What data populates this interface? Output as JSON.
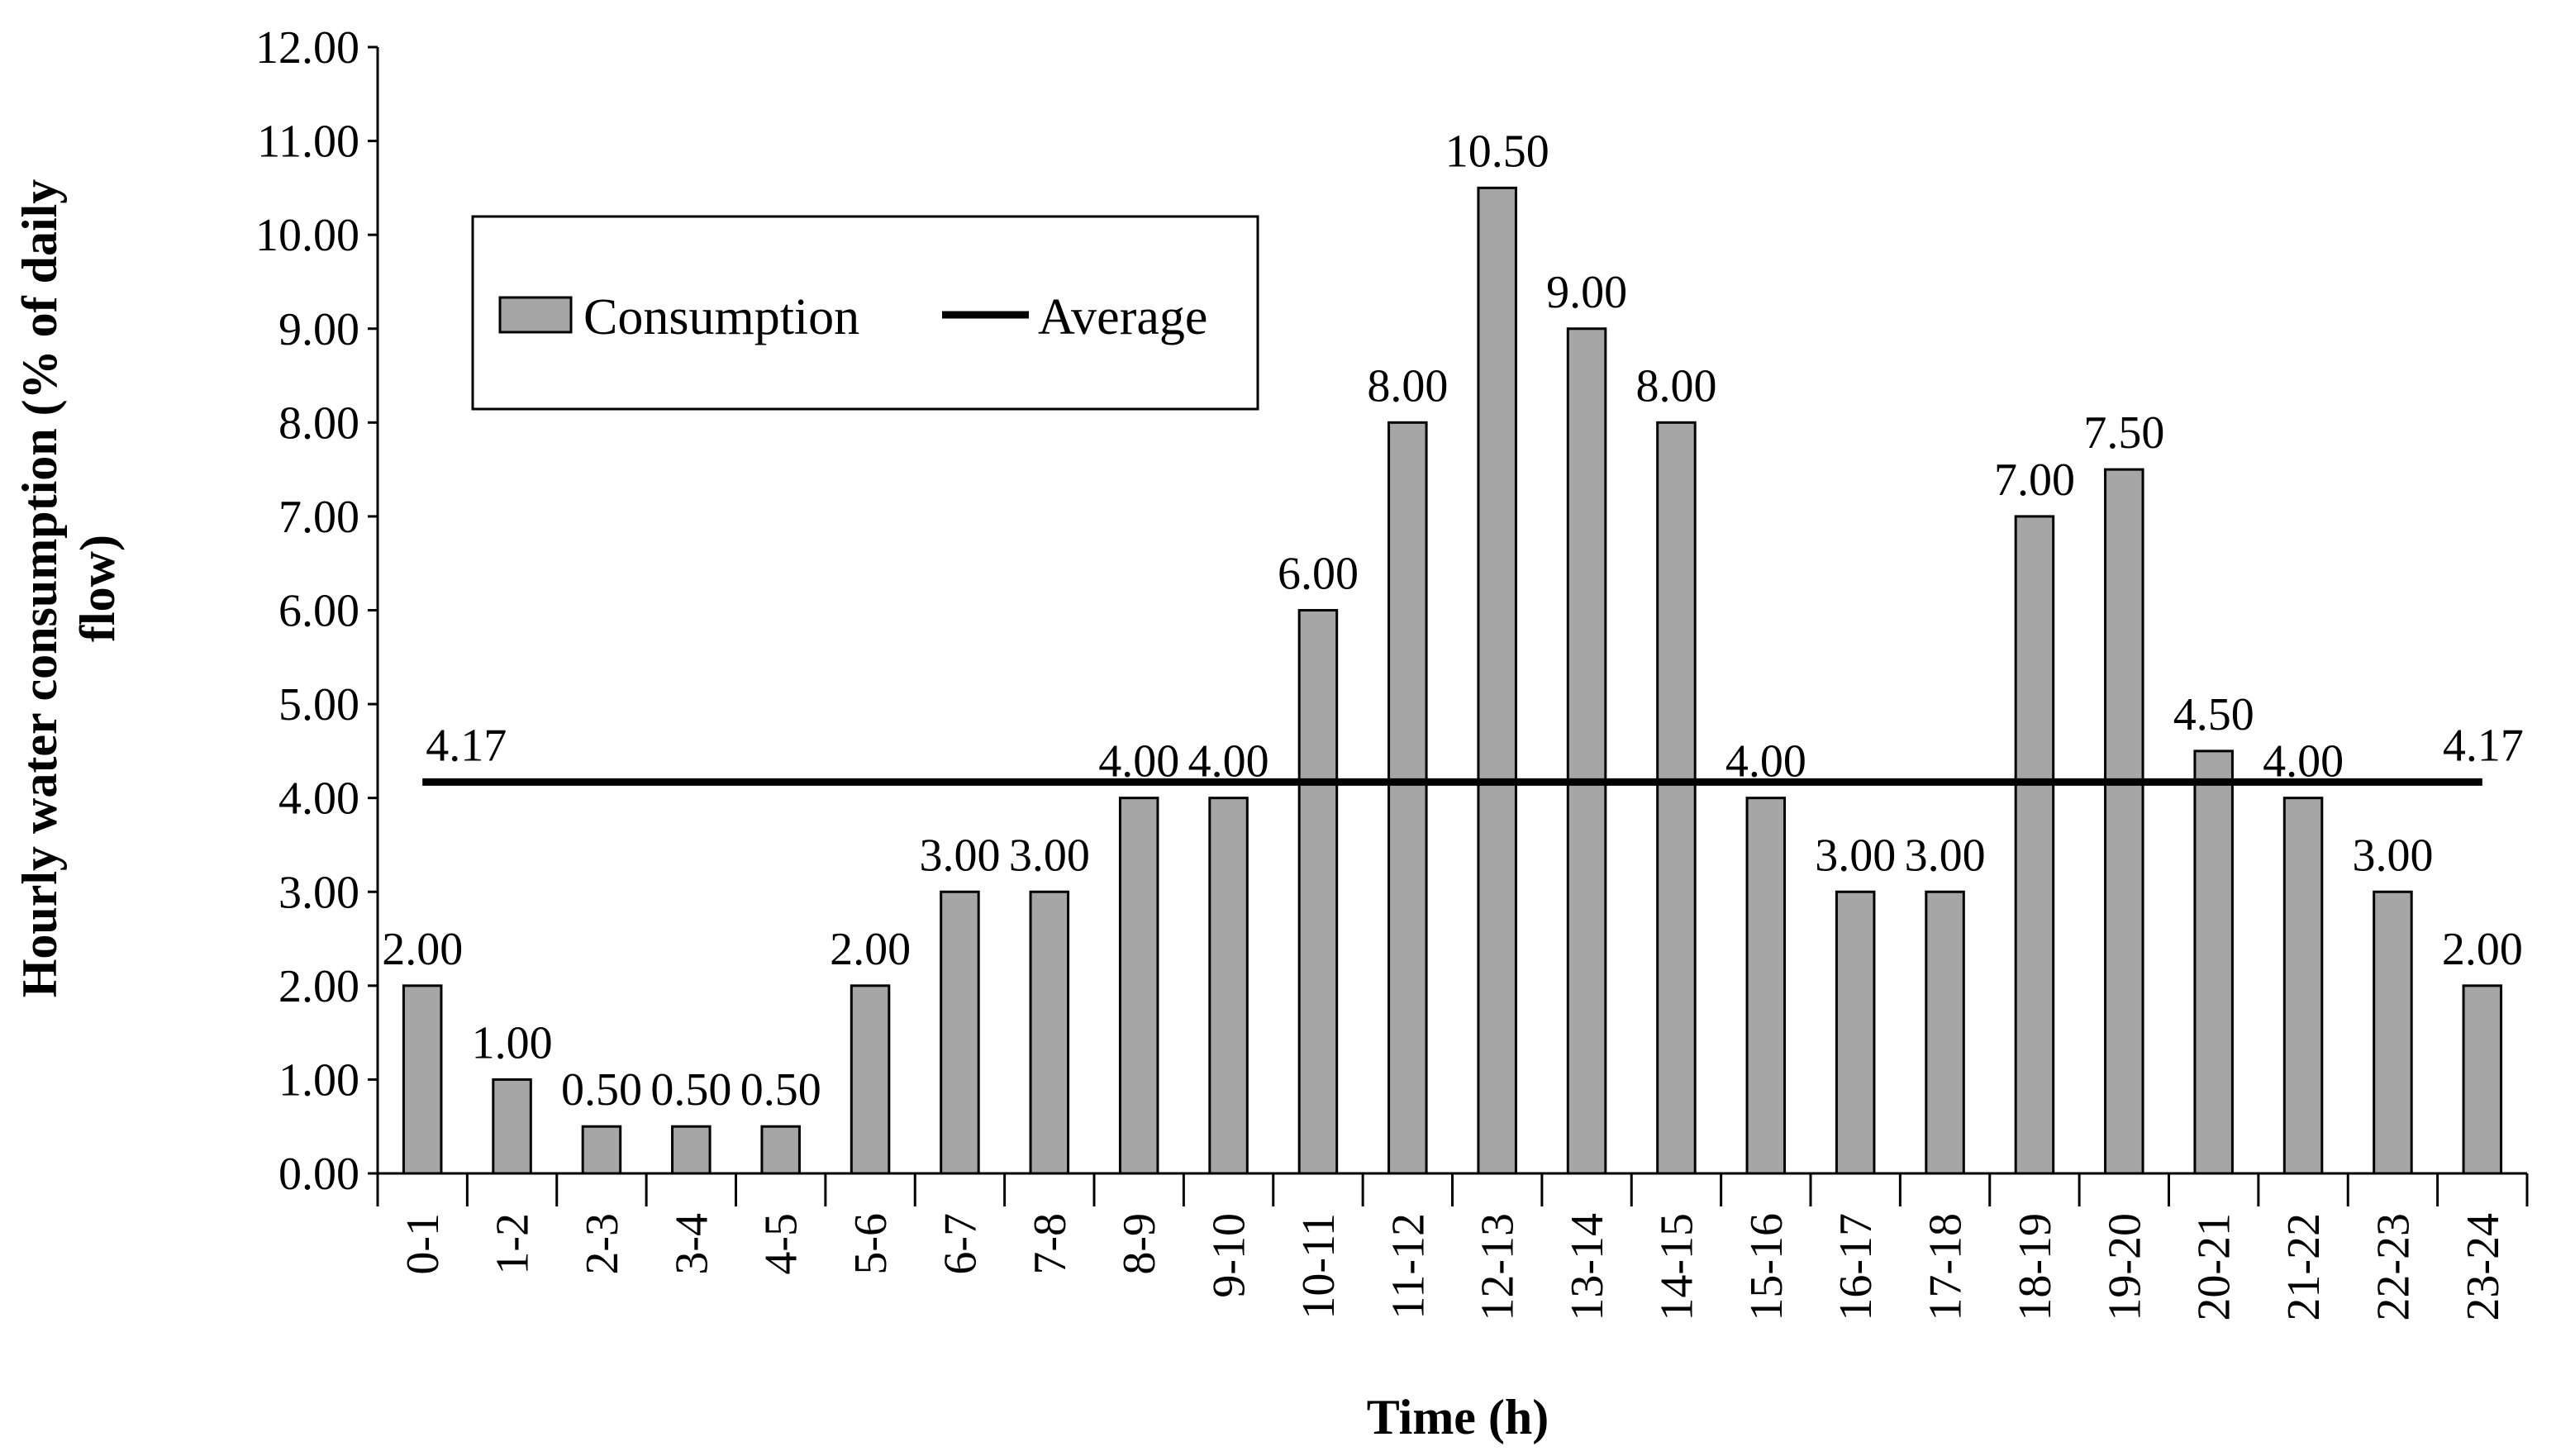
{
  "chart_data": {
    "type": "bar",
    "title": "",
    "xlabel": "Time (h)",
    "ylabel": "Hourly water consumption (% of daily flow)",
    "ylabel_lines": [
      "Hourly water consumption (% of daily",
      "flow)"
    ],
    "ylim": [
      0,
      12
    ],
    "ytick_step": 1,
    "ytick_labels": [
      "0.00",
      "1.00",
      "2.00",
      "3.00",
      "4.00",
      "5.00",
      "6.00",
      "7.00",
      "8.00",
      "9.00",
      "10.00",
      "11.00",
      "12.00"
    ],
    "grid": false,
    "categories": [
      "0-1",
      "1-2",
      "2-3",
      "3-4",
      "4-5",
      "5-6",
      "6-7",
      "7-8",
      "8-9",
      "9-10",
      "10-11",
      "11-12",
      "12-13",
      "13-14",
      "14-15",
      "15-16",
      "16-17",
      "17-18",
      "18-19",
      "19-20",
      "20-21",
      "21-22",
      "22-23",
      "23-24"
    ],
    "series": [
      {
        "name": "Consumption",
        "kind": "bar",
        "color": "#a6a6a6",
        "values": [
          2.0,
          1.0,
          0.5,
          0.5,
          0.5,
          2.0,
          3.0,
          3.0,
          4.0,
          4.0,
          6.0,
          8.0,
          10.5,
          9.0,
          8.0,
          4.0,
          3.0,
          3.0,
          7.0,
          7.5,
          4.5,
          4.0,
          3.0,
          2.0
        ],
        "labels": [
          "2.00",
          "1.00",
          "0.50",
          "0.50",
          "0.50",
          "2.00",
          "3.00",
          "3.00",
          "4.00",
          "4.00",
          "6.00",
          "8.00",
          "10.50",
          "9.00",
          "8.00",
          "4.00",
          "3.00",
          "3.00",
          "7.00",
          "7.50",
          "4.50",
          "4.00",
          "3.00",
          "2.00"
        ]
      },
      {
        "name": "Average",
        "kind": "line",
        "color": "#000000",
        "value": 4.17,
        "labels": [
          "4.17",
          "4.17"
        ]
      }
    ],
    "legend": {
      "position": "top-left",
      "entries": [
        "Consumption",
        "Average"
      ]
    }
  }
}
